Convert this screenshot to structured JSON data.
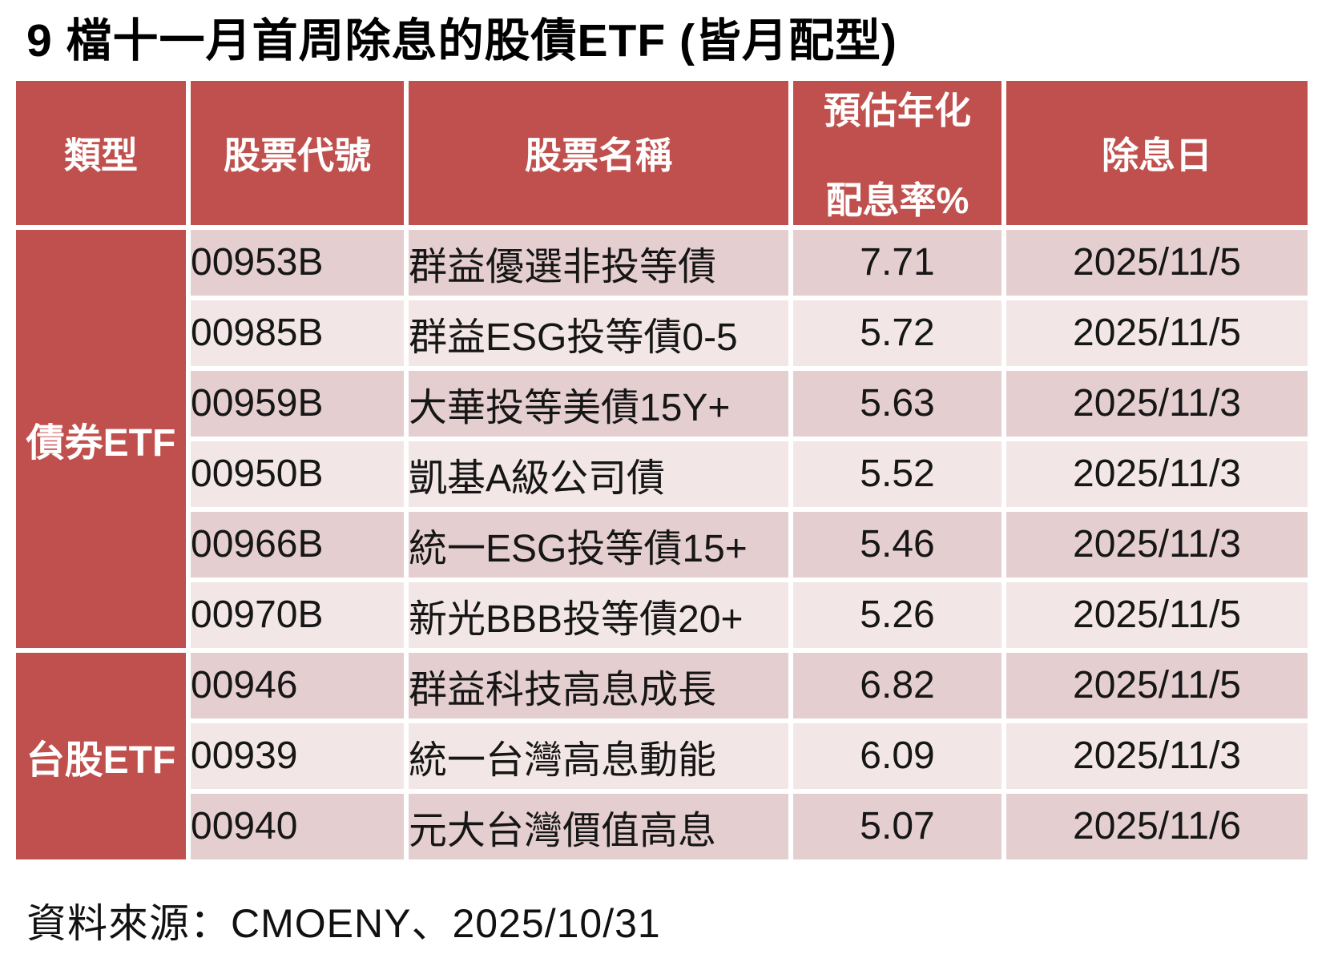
{
  "title": "9 檔十一月首周除息的股債ETF (皆月配型)",
  "footer": {
    "source": "資料來源：CMOENY、2025/10/31"
  },
  "colors": {
    "header_bg": "#c0504d",
    "row_band_dark": "#e5ced0",
    "row_band_light": "#f2e7e6",
    "header_text": "#ffffff",
    "body_text": "#161616",
    "page_bg": "#ffffff"
  },
  "table": {
    "header": {
      "type": "類型",
      "code": "股票代號",
      "name": "股票名稱",
      "rate_line1": "預估年化",
      "rate_line2": "配息率%",
      "date": "除息日"
    },
    "groups": [
      {
        "label": "債券ETF",
        "rows": [
          {
            "code": "00953B",
            "name": "群益優選非投等債",
            "rate": "7.71",
            "date": "2025/11/5"
          },
          {
            "code": "00985B",
            "name": "群益ESG投等債0-5",
            "rate": "5.72",
            "date": "2025/11/5"
          },
          {
            "code": "00959B",
            "name": "大華投等美債15Y+",
            "rate": "5.63",
            "date": "2025/11/3"
          },
          {
            "code": "00950B",
            "name": "凱基A級公司債",
            "rate": "5.52",
            "date": "2025/11/3"
          },
          {
            "code": "00966B",
            "name": "統一ESG投等債15+",
            "rate": "5.46",
            "date": "2025/11/3"
          },
          {
            "code": "00970B",
            "name": "新光BBB投等債20+",
            "rate": "5.26",
            "date": "2025/11/5"
          }
        ]
      },
      {
        "label": "台股ETF",
        "rows": [
          {
            "code": "00946",
            "name": "群益科技高息成長",
            "rate": "6.82",
            "date": "2025/11/5"
          },
          {
            "code": "00939",
            "name": "統一台灣高息動能",
            "rate": "6.09",
            "date": "2025/11/3"
          },
          {
            "code": "00940",
            "name": "元大台灣價值高息",
            "rate": "5.07",
            "date": "2025/11/6"
          }
        ]
      }
    ]
  },
  "chart_data": {
    "type": "table",
    "title": "9 檔十一月首周除息的股債ETF (皆月配型)",
    "columns": [
      "類型",
      "股票代號",
      "股票名稱",
      "預估年化配息率%",
      "除息日"
    ],
    "rows": [
      [
        "債券ETF",
        "00953B",
        "群益優選非投等債",
        7.71,
        "2025/11/5"
      ],
      [
        "債券ETF",
        "00985B",
        "群益ESG投等債0-5",
        5.72,
        "2025/11/5"
      ],
      [
        "債券ETF",
        "00959B",
        "大華投等美債15Y+",
        5.63,
        "2025/11/3"
      ],
      [
        "債券ETF",
        "00950B",
        "凱基A級公司債",
        5.52,
        "2025/11/3"
      ],
      [
        "債券ETF",
        "00966B",
        "統一ESG投等債15+",
        5.46,
        "2025/11/3"
      ],
      [
        "債券ETF",
        "00970B",
        "新光BBB投等債20+",
        5.26,
        "2025/11/5"
      ],
      [
        "台股ETF",
        "00946",
        "群益科技高息成長",
        6.82,
        "2025/11/5"
      ],
      [
        "台股ETF",
        "00939",
        "統一台灣高息動能",
        6.09,
        "2025/11/3"
      ],
      [
        "台股ETF",
        "00940",
        "元大台灣價值高息",
        5.07,
        "2025/11/6"
      ]
    ],
    "source_note": "資料來源：CMOENY、2025/10/31"
  }
}
